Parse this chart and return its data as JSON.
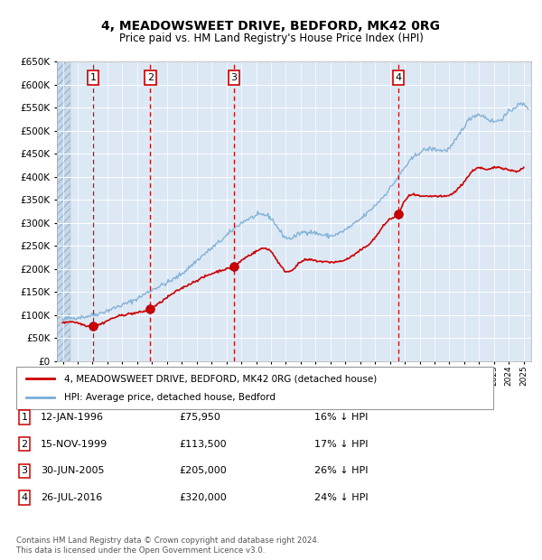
{
  "title": "4, MEADOWSWEET DRIVE, BEDFORD, MK42 0RG",
  "subtitle": "Price paid vs. HM Land Registry's House Price Index (HPI)",
  "footer": "Contains HM Land Registry data © Crown copyright and database right 2024.\nThis data is licensed under the Open Government Licence v3.0.",
  "legend_line1": "4, MEADOWSWEET DRIVE, BEDFORD, MK42 0RG (detached house)",
  "legend_line2": "HPI: Average price, detached house, Bedford",
  "sales": [
    {
      "num": 1,
      "date": "12-JAN-1996",
      "year": 1996.04,
      "price": 75950,
      "pct": "16%",
      "dir": "↓"
    },
    {
      "num": 2,
      "date": "15-NOV-1999",
      "year": 1999.88,
      "price": 113500,
      "pct": "17%",
      "dir": "↓"
    },
    {
      "num": 3,
      "date": "30-JUN-2005",
      "year": 2005.5,
      "price": 205000,
      "pct": "26%",
      "dir": "↓"
    },
    {
      "num": 4,
      "date": "26-JUL-2016",
      "year": 2016.57,
      "price": 320000,
      "pct": "24%",
      "dir": "↓"
    }
  ],
  "ylim": [
    0,
    650000
  ],
  "xlim_start": 1993.6,
  "xlim_end": 2025.5,
  "plot_bg": "#dde8f5",
  "red_line_color": "#cc0000",
  "blue_line_color": "#7aadd4",
  "red_dashed_color": "#cc0000",
  "sale_marker_color": "#cc0000",
  "box_edge_color": "#cc0000",
  "box_face_color": "#ffffff",
  "hpi_anchors_x": [
    1994,
    1995,
    1996,
    1997,
    1998,
    1999,
    2000,
    2001,
    2002,
    2003,
    2004,
    2005,
    2006,
    2007,
    2008,
    2009,
    2010,
    2011,
    2012,
    2013,
    2014,
    2015,
    2016,
    2017,
    2018,
    2019,
    2020,
    2021,
    2022,
    2023,
    2024,
    2025.3
  ],
  "hpi_anchors_y": [
    90000,
    95000,
    100000,
    110000,
    122000,
    136000,
    155000,
    170000,
    190000,
    218000,
    245000,
    272000,
    300000,
    315000,
    310000,
    268000,
    278000,
    278000,
    272000,
    285000,
    308000,
    338000,
    375000,
    420000,
    453000,
    460000,
    462000,
    510000,
    535000,
    520000,
    540000,
    550000
  ],
  "red_anchors_x": [
    1994.0,
    1995.5,
    1996.04,
    1997,
    1998,
    1999.88,
    2001,
    2003,
    2005.0,
    2005.5,
    2006,
    2007,
    2007.5,
    2008,
    2009,
    2010,
    2011,
    2012,
    2013,
    2014,
    2015,
    2016.0,
    2016.57,
    2017,
    2018,
    2019,
    2020,
    2021,
    2022,
    2022.5,
    2023,
    2024,
    2025.0
  ],
  "red_anchors_y": [
    82000,
    78000,
    75950,
    88000,
    100000,
    113500,
    138000,
    175000,
    200000,
    205000,
    218000,
    238000,
    245000,
    238000,
    195000,
    215000,
    218000,
    215000,
    220000,
    240000,
    268000,
    308000,
    320000,
    348000,
    358000,
    358000,
    360000,
    390000,
    420000,
    415000,
    420000,
    415000,
    420000
  ]
}
